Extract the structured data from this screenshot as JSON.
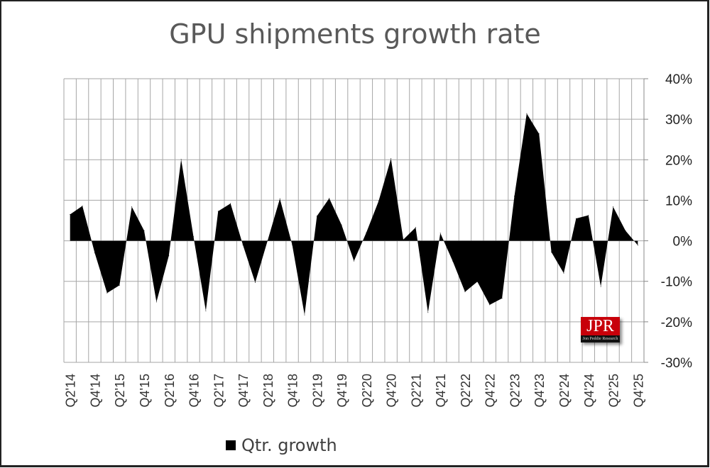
{
  "chart_data": {
    "type": "area",
    "title": "GPU shipments growth rate",
    "x": [
      "Q2'14",
      "Q3'14",
      "Q4'14",
      "Q1'15",
      "Q2'15",
      "Q3'15",
      "Q4'15",
      "Q1'16",
      "Q2'16",
      "Q3'16",
      "Q4'16",
      "Q1'17",
      "Q2'17",
      "Q3'17",
      "Q4'17",
      "Q1'18",
      "Q2'18",
      "Q3'18",
      "Q4'18",
      "Q1'19",
      "Q2'19",
      "Q3'19",
      "Q4'19",
      "Q1'20",
      "Q2'20",
      "Q3'20",
      "Q4'20",
      "Q1'21",
      "Q2'21",
      "Q3'21",
      "Q4'21",
      "Q1'22",
      "Q2'22",
      "Q3'22",
      "Q4'22",
      "Q1'23",
      "Q2'23",
      "Q3'23",
      "Q4'23",
      "Q1'24",
      "Q2'24",
      "Q3'24",
      "Q4'24",
      "Q1'25",
      "Q2'25",
      "Q3'25",
      "Q4'25"
    ],
    "x_tick_labels": [
      "Q2'14",
      "Q4'14",
      "Q2'15",
      "Q4'15",
      "Q2'16",
      "Q4'16",
      "Q2'17",
      "Q4'17",
      "Q2'18",
      "Q4'18",
      "Q2'19",
      "Q4'19",
      "Q2'20",
      "Q4'20",
      "Q2'21",
      "Q4'21",
      "Q2'22",
      "Q4'22",
      "Q2'23",
      "Q4'23",
      "Q2'24",
      "Q4'24",
      "Q2'25",
      "Q4'25"
    ],
    "series": [
      {
        "name": "Qtr. growth",
        "color": "#000000",
        "values": [
          6.5,
          8.6,
          -3,
          -12.9,
          -11,
          8.4,
          2.5,
          -15.1,
          -3.7,
          20.1,
          1,
          -17.3,
          7.3,
          9.2,
          -1,
          -10.3,
          0,
          10.4,
          -1,
          -18.3,
          6.1,
          10.5,
          3.9,
          -5,
          2,
          9.8,
          20.3,
          0.3,
          3.3,
          -17.7,
          1.9,
          -5,
          -12.6,
          -10.1,
          -15.8,
          -14.2,
          11,
          31.4,
          26.4,
          -2.8,
          -8,
          5.5,
          6.3,
          -11.3,
          8.4,
          2.5,
          -1.1
        ]
      }
    ],
    "ylim": [
      -30,
      40
    ],
    "y_ticks": [
      40,
      30,
      20,
      10,
      0,
      -10,
      -20,
      -30
    ],
    "y_tick_labels": [
      "40%",
      "30%",
      "20%",
      "10%",
      "0%",
      "-10%",
      "-20%",
      "-30%"
    ],
    "y_axis_side": "right",
    "grid": true,
    "legend_placement": "bottom-left"
  },
  "logo": {
    "text": "JPR",
    "subtext": "Jon Peddie Research",
    "color": "#c8000a"
  }
}
